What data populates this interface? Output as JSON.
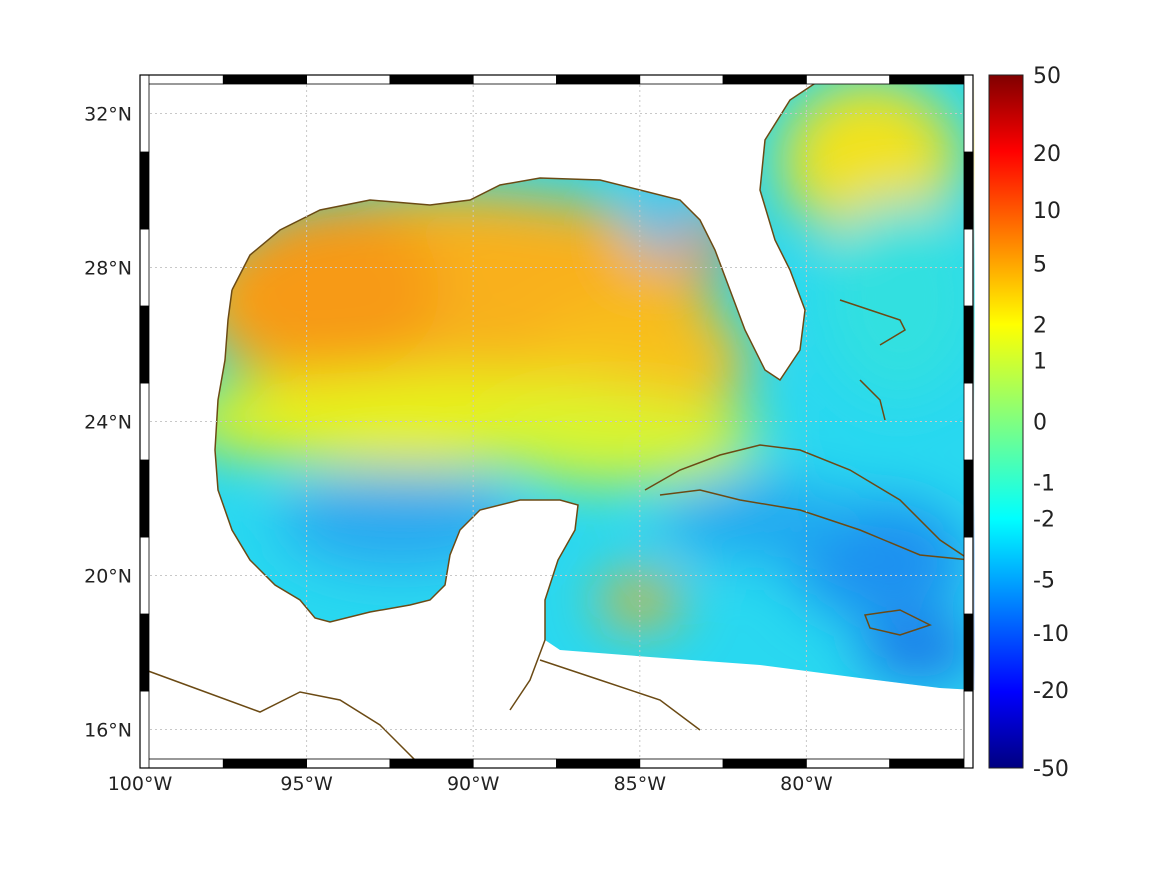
{
  "map": {
    "lon_labels": [
      "100°W",
      "95°W",
      "90°W",
      "85°W",
      "80°W"
    ],
    "lat_labels": [
      "32°N",
      "28°N",
      "24°N",
      "20°N",
      "16°N"
    ],
    "lon_values": [
      -100,
      -95,
      -90,
      -85,
      -80
    ],
    "lat_values": [
      32,
      28,
      24,
      20,
      16
    ],
    "lon_range": [
      -100,
      -75
    ],
    "lat_range": [
      15,
      33
    ],
    "coast_color": "#6b4a14"
  },
  "colorbar": {
    "tick_labels": [
      "50",
      "20",
      "10",
      "5",
      "2",
      "1",
      "0",
      "-1",
      "-2",
      "-5",
      "-10",
      "-20",
      "-50"
    ],
    "colormap": "jet",
    "range": [
      -50,
      50
    ]
  }
}
